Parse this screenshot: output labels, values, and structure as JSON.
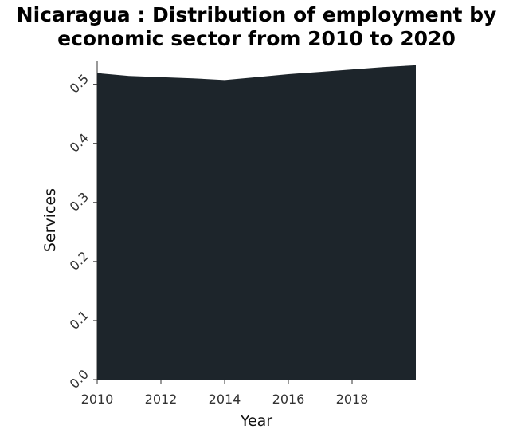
{
  "chart_data": {
    "type": "area",
    "title_lines": [
      "Nicaragua : Distribution of employment by",
      "economic sector from 2010 to 2020"
    ],
    "xlabel": "Year",
    "ylabel": "Services",
    "x": [
      2010,
      2011,
      2012,
      2013,
      2014,
      2015,
      2016,
      2017,
      2018,
      2019,
      2020
    ],
    "series": [
      {
        "values": [
          0.519,
          0.514,
          0.512,
          0.51,
          0.507,
          0.512,
          0.517,
          0.521,
          0.525,
          0.529,
          0.532
        ]
      }
    ],
    "xlim": [
      2010,
      2020
    ],
    "ylim": [
      0,
      0.54
    ],
    "x_ticks": [
      2010,
      2012,
      2014,
      2016,
      2018
    ],
    "x_tick_labels": [
      "2010",
      "2012",
      "2014",
      "2016",
      "2018"
    ],
    "y_ticks": [
      0,
      0.1,
      0.2,
      0.3,
      0.4,
      0.5
    ],
    "y_tick_labels": [
      "0.0",
      "0.1",
      "0.2",
      "0.3",
      "0.4",
      "0.5"
    ],
    "fill_color": "#1d252b",
    "grid": false,
    "legend": "none"
  }
}
